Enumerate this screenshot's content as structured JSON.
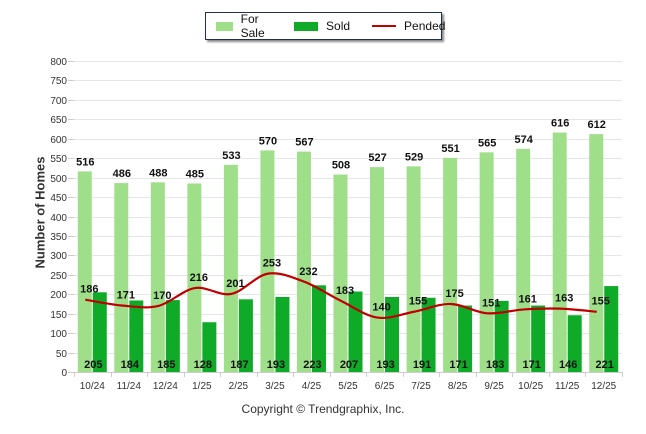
{
  "chart_data": {
    "type": "bar",
    "title": "",
    "xlabel": "",
    "ylabel": "Number of Homes",
    "ylim": [
      0,
      800
    ],
    "yticks": [
      0,
      50,
      100,
      150,
      200,
      250,
      300,
      350,
      400,
      450,
      500,
      550,
      600,
      650,
      700,
      750,
      800
    ],
    "grid": true,
    "legend_position": "top-center",
    "categories": [
      "10/24",
      "11/24",
      "12/24",
      "1/25",
      "2/25",
      "3/25",
      "4/25",
      "5/25",
      "6/25",
      "7/25",
      "8/25",
      "9/25",
      "10/25",
      "11/25",
      "12/25"
    ],
    "series": [
      {
        "name": "For Sale",
        "kind": "bar",
        "color": "#a0df8a",
        "values": [
          516,
          486,
          488,
          485,
          533,
          570,
          567,
          508,
          527,
          529,
          551,
          565,
          574,
          616,
          612
        ]
      },
      {
        "name": "Sold",
        "kind": "bar",
        "color": "#0eaa28",
        "values": [
          205,
          184,
          185,
          128,
          187,
          193,
          223,
          207,
          193,
          191,
          171,
          183,
          171,
          146,
          221
        ]
      },
      {
        "name": "Pended",
        "kind": "line",
        "color": "#c00000",
        "values": [
          186,
          171,
          170,
          216,
          201,
          253,
          232,
          183,
          140,
          155,
          175,
          151,
          161,
          163,
          155
        ]
      }
    ],
    "footer": "Copyright © Trendgraphix, Inc."
  }
}
